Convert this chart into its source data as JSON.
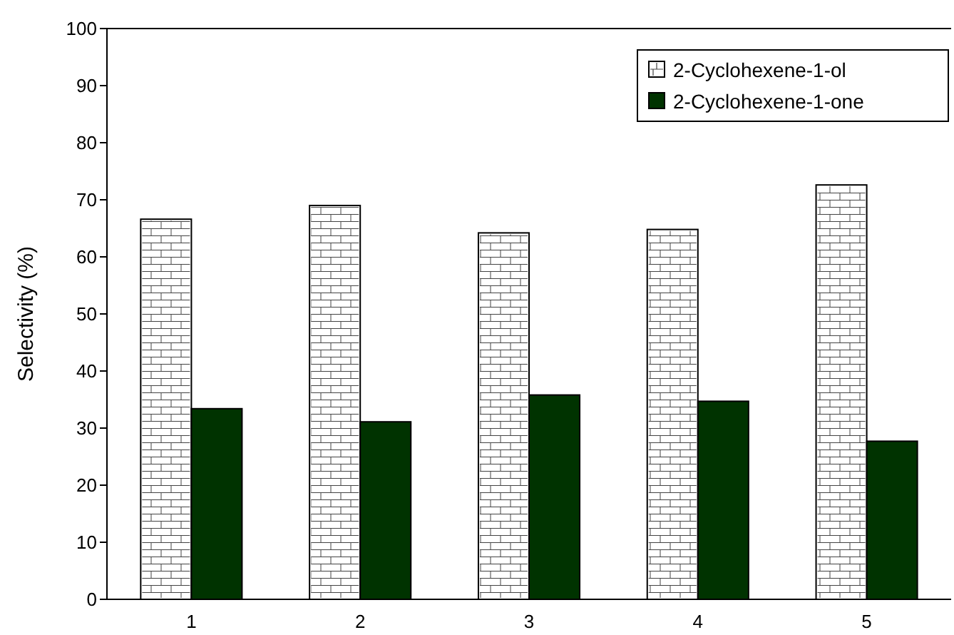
{
  "chart_data": {
    "type": "bar",
    "ylabel": "Selectivity (%)",
    "categories": [
      "1",
      "2",
      "3",
      "4",
      "5"
    ],
    "series": [
      {
        "name": "2-Cyclohexene-1-ol",
        "color": "#ffffff",
        "values": [
          66.6,
          69.0,
          64.2,
          64.8,
          72.6
        ]
      },
      {
        "name": "2-Cyclohexene-1-one",
        "color": "#003300",
        "values": [
          33.4,
          31.1,
          35.8,
          34.7,
          27.7
        ]
      }
    ],
    "ylim": [
      0,
      100
    ],
    "yticks": [
      0,
      10,
      20,
      30,
      40,
      50,
      60,
      70,
      80,
      90,
      100
    ],
    "grid": false,
    "legend": "top right"
  }
}
